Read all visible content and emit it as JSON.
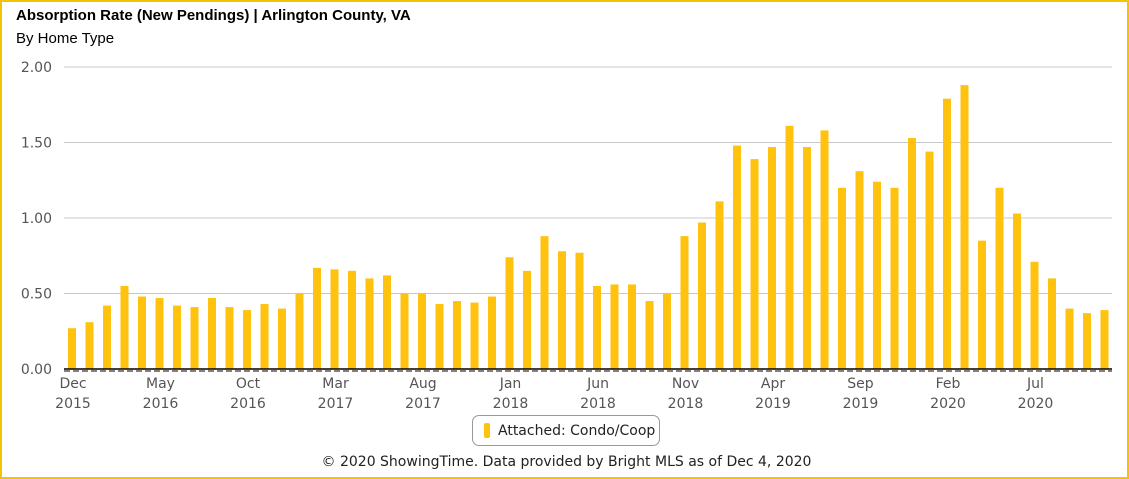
{
  "title": "Absorption Rate (New Pendings) | Arlington County, VA",
  "subtitle": "By Home Type",
  "footer": "© 2020 ShowingTime. Data provided by Bright MLS as of Dec 4, 2020",
  "colors": {
    "bar": "#ffc20e",
    "grid": "#c8c8c8",
    "border": "#f5c400"
  },
  "chart_data": {
    "type": "bar",
    "title": "Absorption Rate (New Pendings) | Arlington County, VA",
    "subtitle": "By Home Type",
    "ylim": [
      0,
      2.0
    ],
    "yticks": [
      "0.00",
      "0.50",
      "1.00",
      "1.50",
      "2.00"
    ],
    "ytick_values": [
      0,
      0.5,
      1.0,
      1.5,
      2.0
    ],
    "x_tick_labels": [
      {
        "month": "Dec",
        "year": "2015",
        "index": 0
      },
      {
        "month": "May",
        "year": "2016",
        "index": 5
      },
      {
        "month": "Oct",
        "year": "2016",
        "index": 10
      },
      {
        "month": "Mar",
        "year": "2017",
        "index": 15
      },
      {
        "month": "Aug",
        "year": "2017",
        "index": 20
      },
      {
        "month": "Jan",
        "year": "2018",
        "index": 25
      },
      {
        "month": "Jun",
        "year": "2018",
        "index": 30
      },
      {
        "month": "Nov",
        "year": "2018",
        "index": 35
      },
      {
        "month": "Apr",
        "year": "2019",
        "index": 40
      },
      {
        "month": "Sep",
        "year": "2019",
        "index": 45
      },
      {
        "month": "Feb",
        "year": "2020",
        "index": 50
      },
      {
        "month": "Jul",
        "year": "2020",
        "index": 55
      }
    ],
    "categories": [
      "Dec 2015",
      "Jan 2016",
      "Feb 2016",
      "Mar 2016",
      "Apr 2016",
      "May 2016",
      "Jun 2016",
      "Jul 2016",
      "Aug 2016",
      "Sep 2016",
      "Oct 2016",
      "Nov 2016",
      "Dec 2016",
      "Jan 2017",
      "Feb 2017",
      "Mar 2017",
      "Apr 2017",
      "May 2017",
      "Jun 2017",
      "Jul 2017",
      "Aug 2017",
      "Sep 2017",
      "Oct 2017",
      "Nov 2017",
      "Dec 2017",
      "Jan 2018",
      "Feb 2018",
      "Mar 2018",
      "Apr 2018",
      "May 2018",
      "Jun 2018",
      "Jul 2018",
      "Aug 2018",
      "Sep 2018",
      "Oct 2018",
      "Nov 2018",
      "Dec 2018",
      "Jan 2019",
      "Feb 2019",
      "Mar 2019",
      "Apr 2019",
      "May 2019",
      "Jun 2019",
      "Jul 2019",
      "Aug 2019",
      "Sep 2019",
      "Oct 2019",
      "Nov 2019",
      "Dec 2019",
      "Jan 2020",
      "Feb 2020",
      "Mar 2020",
      "Apr 2020",
      "May 2020",
      "Jun 2020",
      "Jul 2020",
      "Aug 2020",
      "Sep 2020",
      "Oct 2020",
      "Nov 2020"
    ],
    "series": [
      {
        "name": "Attached: Condo/Coop",
        "values": [
          0.27,
          0.31,
          0.42,
          0.55,
          0.48,
          0.47,
          0.42,
          0.41,
          0.47,
          0.41,
          0.39,
          0.43,
          0.4,
          0.5,
          0.67,
          0.66,
          0.65,
          0.6,
          0.62,
          0.5,
          0.5,
          0.43,
          0.45,
          0.44,
          0.48,
          0.74,
          0.65,
          0.88,
          0.78,
          0.77,
          0.55,
          0.56,
          0.56,
          0.45,
          0.5,
          0.88,
          0.97,
          1.11,
          1.48,
          1.39,
          1.47,
          1.61,
          1.47,
          1.58,
          1.2,
          1.31,
          1.24,
          1.2,
          1.53,
          1.44,
          1.79,
          1.88,
          0.85,
          1.2,
          1.03,
          0.71,
          0.6,
          0.4,
          0.37,
          0.39
        ]
      }
    ],
    "legend": {
      "position": "bottom-center",
      "entries": [
        "Attached: Condo/Coop"
      ]
    },
    "grid": true
  }
}
